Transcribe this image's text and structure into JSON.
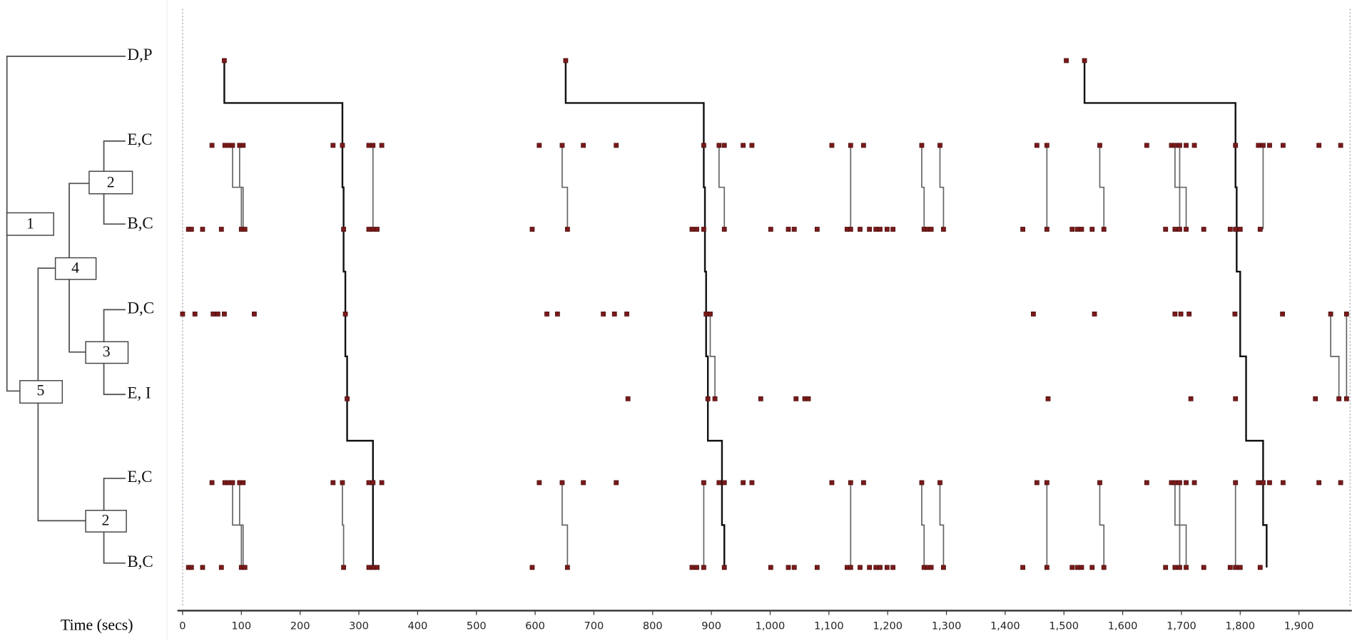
{
  "chart_data": {
    "type": "timeline",
    "x_label": "Time (secs)",
    "xlim": [
      0,
      1987
    ],
    "xticks": [
      0,
      100,
      200,
      300,
      400,
      500,
      600,
      700,
      800,
      900,
      {
        "value": 1000,
        "label": "1,000"
      },
      {
        "value": 1100,
        "label": "1,100"
      },
      {
        "value": 1200,
        "label": "1,200"
      },
      {
        "value": 1300,
        "label": "1,300"
      },
      {
        "value": 1400,
        "label": "1,400"
      },
      {
        "value": 1500,
        "label": "1,500"
      },
      {
        "value": 1600,
        "label": "1,600"
      },
      {
        "value": 1700,
        "label": "1,700"
      },
      {
        "value": 1800,
        "label": "1,800"
      },
      {
        "value": 1900,
        "label": "1,900"
      }
    ],
    "dot_color": "#7a1a1a",
    "tree_nodes": [
      "1",
      "2",
      "4",
      "3",
      "5",
      "2"
    ],
    "rows": [
      {
        "name": "D,P",
        "times": [
          71,
          652,
          1504,
          1535
        ]
      },
      {
        "name": "E,C",
        "times": [
          50,
          72,
          78,
          85,
          97,
          103,
          256,
          272,
          317,
          324,
          339,
          607,
          646,
          682,
          738,
          887,
          913,
          922,
          954,
          969,
          1105,
          1137,
          1159,
          1258,
          1289,
          1454,
          1471,
          1561,
          1641,
          1683,
          1689,
          1697,
          1708,
          1722,
          1792,
          1831,
          1839,
          1850,
          1873,
          1934,
          1971
        ]
      },
      {
        "name": "B,C",
        "times": [
          10,
          15,
          34,
          66,
          100,
          106,
          274,
          317,
          324,
          331,
          595,
          655,
          867,
          875,
          887,
          922,
          1001,
          1031,
          1041,
          1080,
          1131,
          1137,
          1153,
          1169,
          1180,
          1187,
          1199,
          1209,
          1262,
          1268,
          1274,
          1295,
          1430,
          1471,
          1514,
          1523,
          1530,
          1548,
          1568,
          1673,
          1689,
          1697,
          1708,
          1738,
          1783,
          1792,
          1800,
          1834
        ]
      },
      {
        "name": "D,C",
        "times": [
          0,
          21,
          52,
          60,
          71,
          122,
          277,
          620,
          638,
          716,
          735,
          756,
          891,
          898,
          1448,
          1552,
          1689,
          1699,
          1713,
          1791,
          1872,
          1954,
          1981
        ]
      },
      {
        "name": "E, I",
        "times": [
          280,
          758,
          894,
          906,
          984,
          1044,
          1059,
          1065,
          1473,
          1716,
          1792,
          1928,
          1968,
          1981
        ]
      },
      {
        "name": "E,C",
        "times": [
          50,
          72,
          78,
          85,
          97,
          103,
          256,
          272,
          317,
          324,
          339,
          607,
          646,
          682,
          738,
          887,
          913,
          922,
          954,
          969,
          1105,
          1137,
          1159,
          1258,
          1289,
          1454,
          1471,
          1561,
          1641,
          1683,
          1689,
          1697,
          1708,
          1722,
          1792,
          1831,
          1839,
          1850,
          1873,
          1934,
          1971
        ]
      },
      {
        "name": "B,C",
        "times": [
          10,
          15,
          34,
          66,
          100,
          106,
          274,
          317,
          324,
          331,
          595,
          655,
          867,
          875,
          887,
          922,
          1001,
          1031,
          1041,
          1080,
          1131,
          1137,
          1153,
          1169,
          1180,
          1187,
          1199,
          1209,
          1262,
          1268,
          1274,
          1295,
          1430,
          1471,
          1514,
          1523,
          1530,
          1548,
          1568,
          1673,
          1689,
          1697,
          1708,
          1738,
          1783,
          1792,
          1800,
          1834
        ]
      }
    ],
    "chains": [
      {
        "start_row": 0,
        "color": "#111",
        "times": [
          71,
          272,
          274,
          277,
          280,
          324,
          324
        ]
      },
      {
        "start_row": 0,
        "color": "#111",
        "times": [
          652,
          887,
          889,
          891,
          894,
          918,
          922
        ]
      },
      {
        "start_row": 0,
        "color": "#111",
        "times": [
          1535,
          1792,
          1794,
          1800,
          1810,
          1839,
          1845
        ]
      },
      {
        "start_row": 1,
        "color": "#666",
        "times": [
          85,
          100
        ]
      },
      {
        "start_row": 1,
        "color": "#666",
        "times": [
          97,
          103
        ]
      },
      {
        "start_row": 1,
        "color": "#666",
        "times": [
          324,
          324
        ]
      },
      {
        "start_row": 1,
        "color": "#666",
        "times": [
          646,
          655
        ]
      },
      {
        "start_row": 1,
        "color": "#666",
        "times": [
          913,
          922
        ]
      },
      {
        "start_row": 1,
        "color": "#666",
        "times": [
          1137,
          1137
        ]
      },
      {
        "start_row": 1,
        "color": "#666",
        "times": [
          1258,
          1262
        ]
      },
      {
        "start_row": 1,
        "color": "#666",
        "times": [
          1289,
          1295
        ]
      },
      {
        "start_row": 1,
        "color": "#666",
        "times": [
          1471,
          1471
        ]
      },
      {
        "start_row": 1,
        "color": "#666",
        "times": [
          1561,
          1568
        ]
      },
      {
        "start_row": 1,
        "color": "#666",
        "times": [
          1689,
          1697
        ]
      },
      {
        "start_row": 1,
        "color": "#666",
        "times": [
          1697,
          1708
        ]
      },
      {
        "start_row": 1,
        "color": "#666",
        "times": [
          1839,
          1839
        ]
      },
      {
        "start_row": 3,
        "color": "#666",
        "times": [
          898,
          906
        ]
      },
      {
        "start_row": 3,
        "color": "#666",
        "times": [
          1954,
          1968
        ]
      },
      {
        "start_row": 3,
        "color": "#666",
        "times": [
          1981,
          1981
        ]
      },
      {
        "start_row": 5,
        "color": "#666",
        "times": [
          85,
          100
        ]
      },
      {
        "start_row": 5,
        "color": "#666",
        "times": [
          97,
          103
        ]
      },
      {
        "start_row": 5,
        "color": "#666",
        "times": [
          272,
          274
        ]
      },
      {
        "start_row": 5,
        "color": "#666",
        "times": [
          646,
          655
        ]
      },
      {
        "start_row": 5,
        "color": "#666",
        "times": [
          887,
          887
        ]
      },
      {
        "start_row": 5,
        "color": "#666",
        "times": [
          1137,
          1137
        ]
      },
      {
        "start_row": 5,
        "color": "#666",
        "times": [
          1258,
          1262
        ]
      },
      {
        "start_row": 5,
        "color": "#666",
        "times": [
          1289,
          1295
        ]
      },
      {
        "start_row": 5,
        "color": "#666",
        "times": [
          1471,
          1471
        ]
      },
      {
        "start_row": 5,
        "color": "#666",
        "times": [
          1561,
          1568
        ]
      },
      {
        "start_row": 5,
        "color": "#666",
        "times": [
          1689,
          1697
        ]
      },
      {
        "start_row": 5,
        "color": "#666",
        "times": [
          1697,
          1708
        ]
      },
      {
        "start_row": 5,
        "color": "#666",
        "times": [
          1792,
          1792
        ]
      }
    ]
  }
}
